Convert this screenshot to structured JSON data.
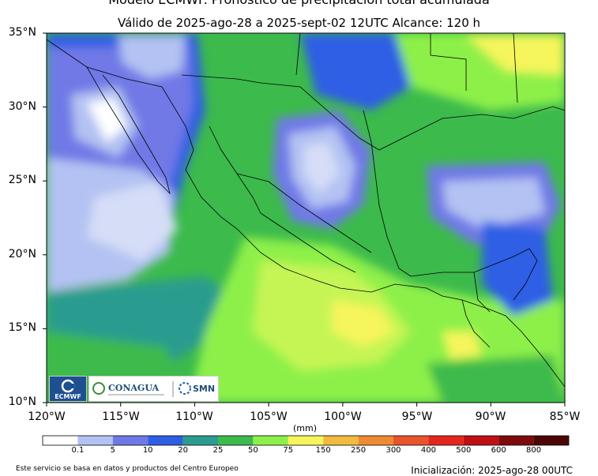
{
  "header": {
    "title": "Modelo ECMWF. Pronóstico de precipitación total acumulada",
    "subtitle": "Válido de 2025-ago-28 a 2025-sept-02 12UTC   Alcance: 120 h"
  },
  "axes": {
    "lat_labels": [
      "35°N",
      "30°N",
      "25°N",
      "20°N",
      "15°N",
      "10°N"
    ],
    "lon_labels": [
      "120°W",
      "115°W",
      "110°W",
      "105°W",
      "100°W",
      "95°W",
      "90°W",
      "85°W"
    ],
    "lat_range": [
      10,
      35
    ],
    "lon_range": [
      -120,
      -85
    ]
  },
  "colorbar": {
    "unit": "(mm)",
    "thresholds": [
      "0.1",
      "5",
      "10",
      "20",
      "25",
      "50",
      "75",
      "150",
      "250",
      "300",
      "400",
      "500",
      "600",
      "800"
    ],
    "colors": [
      "#ffffff",
      "#b3c2f3",
      "#6f79e6",
      "#2d5ee4",
      "#2b9c8f",
      "#3cba4c",
      "#8df04a",
      "#f6f55b",
      "#f1bb3f",
      "#ee8a33",
      "#e8542b",
      "#e5261d",
      "#c00f14",
      "#7e0a0c",
      "#4c0606"
    ]
  },
  "logos": {
    "ecmwf": "ECMWF",
    "conagua": "CONAGUA",
    "smn": "SMN"
  },
  "footer": {
    "left": "Este servicio se basa en datos y productos del Centro Europeo",
    "right": "Inicialización: 2025-ago-28 00UTC"
  }
}
